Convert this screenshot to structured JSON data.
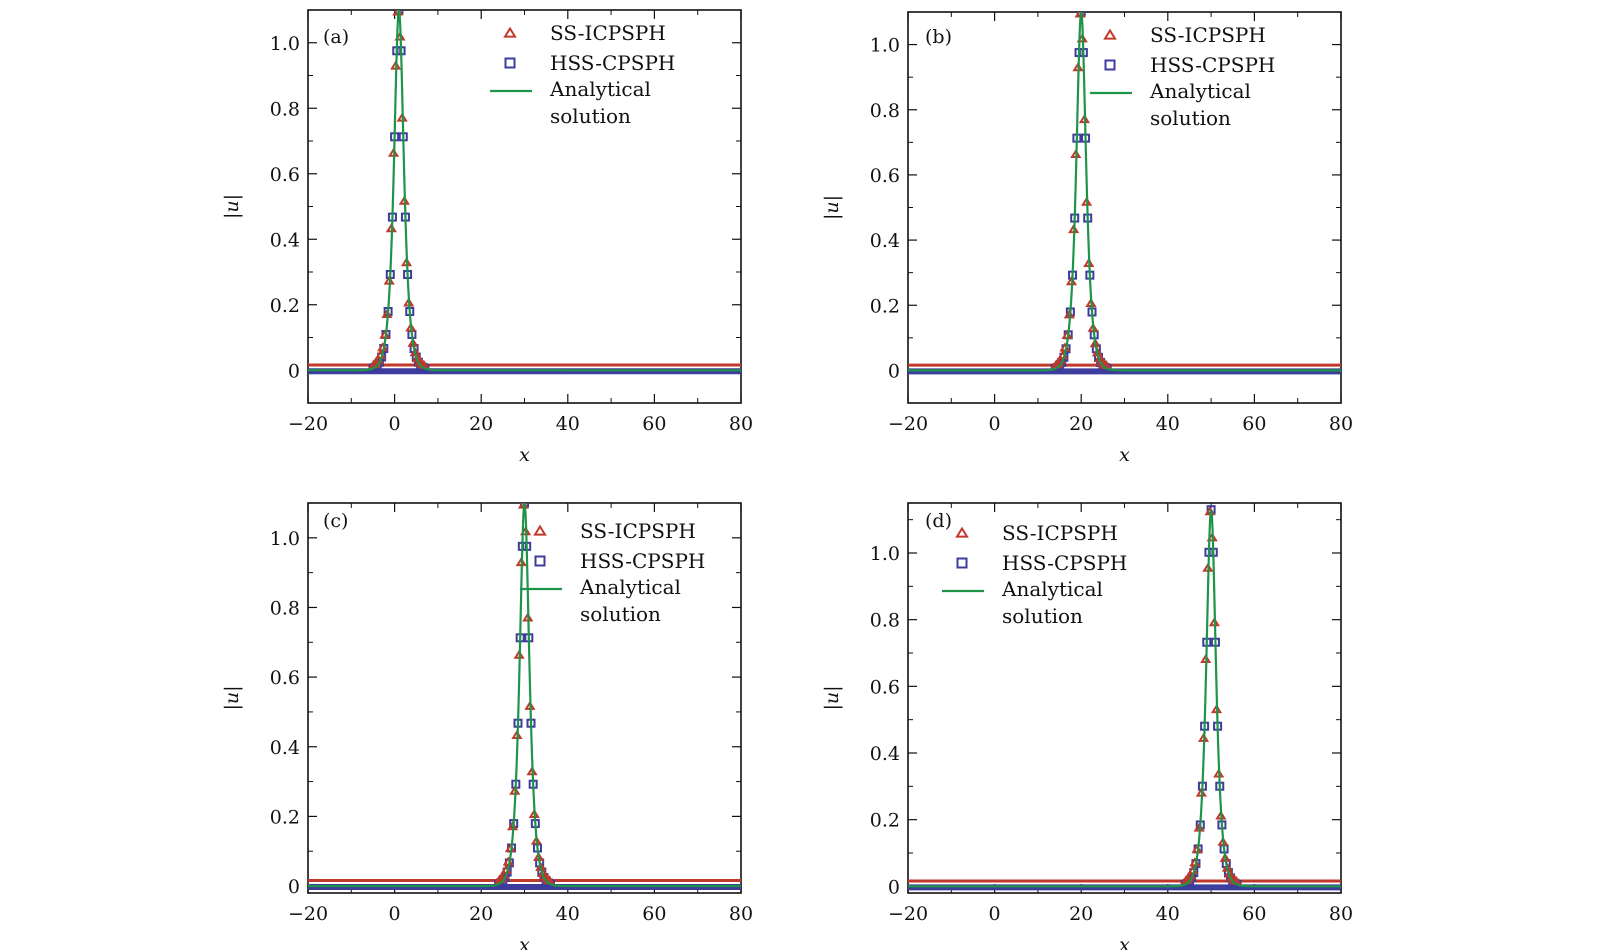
{
  "colors": {
    "ss": "#c0392b",
    "hss": "#3d3d9e",
    "analytical": "#1e9448",
    "axes": "#111111"
  },
  "chart_data": [
    {
      "type": "scatter",
      "panel": "(a)",
      "xlabel": "x",
      "ylabel": "|u|",
      "xlim": [
        -20,
        80
      ],
      "ylim": [
        -0.1,
        1.1
      ],
      "xticks": [
        -20,
        0,
        20,
        40,
        60,
        80
      ],
      "xtick_labels": [
        "−20",
        "0",
        "20",
        "40",
        "60",
        "80"
      ],
      "yticks": [
        0,
        0.2,
        0.4,
        0.6,
        0.8,
        1.0
      ],
      "ytick_labels": [
        "0",
        "0.2",
        "0.4",
        "0.6",
        "0.8",
        "1.0"
      ],
      "legend": [
        "SS-ICPSPH",
        "HSS-CPSPH",
        "Analytical",
        "solution"
      ],
      "legend_position": "top-right",
      "peak_center": 1,
      "peak_amplitude": 1.1,
      "series": [
        {
          "name": "SS-ICPSPH",
          "marker": "triangle",
          "baseline": 0.01
        },
        {
          "name": "HSS-CPSPH",
          "marker": "square",
          "baseline": 0.0
        },
        {
          "name": "Analytical solution",
          "marker": "line",
          "baseline": 0.0
        }
      ]
    },
    {
      "type": "scatter",
      "panel": "(b)",
      "xlabel": "x",
      "ylabel": "|u|",
      "xlim": [
        -20,
        80
      ],
      "ylim": [
        -0.1,
        1.1
      ],
      "xticks": [
        -20,
        0,
        20,
        40,
        60,
        80
      ],
      "xtick_labels": [
        "−20",
        "0",
        "20",
        "40",
        "60",
        "80"
      ],
      "yticks": [
        0,
        0.2,
        0.4,
        0.6,
        0.8,
        1.0
      ],
      "ytick_labels": [
        "0",
        "0.2",
        "0.4",
        "0.6",
        "0.8",
        "1.0"
      ],
      "legend": [
        "SS-ICPSPH",
        "HSS-CPSPH",
        "Analytical",
        "solution"
      ],
      "legend_position": "top-right",
      "peak_center": 20,
      "peak_amplitude": 1.1,
      "series": [
        {
          "name": "SS-ICPSPH",
          "marker": "triangle",
          "baseline": 0.01
        },
        {
          "name": "HSS-CPSPH",
          "marker": "square",
          "baseline": 0.0
        },
        {
          "name": "Analytical solution",
          "marker": "line",
          "baseline": 0.0
        }
      ]
    },
    {
      "type": "scatter",
      "panel": "(c)",
      "xlabel": "x",
      "ylabel": "|u|",
      "xlim": [
        -20,
        80
      ],
      "ylim": [
        -0.02,
        1.1
      ],
      "xticks": [
        -20,
        0,
        20,
        40,
        60,
        80
      ],
      "xtick_labels": [
        "−20",
        "0",
        "20",
        "40",
        "60",
        "80"
      ],
      "yticks": [
        0,
        0.2,
        0.4,
        0.6,
        0.8,
        1.0
      ],
      "ytick_labels": [
        "0",
        "0.2",
        "0.4",
        "0.6",
        "0.8",
        "1.0"
      ],
      "legend": [
        "SS-ICPSPH",
        "HSS-CPSPH",
        "Analytical",
        "solution"
      ],
      "legend_position": "top-right",
      "peak_center": 30,
      "peak_amplitude": 1.1,
      "series": [
        {
          "name": "SS-ICPSPH",
          "marker": "triangle",
          "baseline": 0.01
        },
        {
          "name": "HSS-CPSPH",
          "marker": "square",
          "baseline": 0.0
        },
        {
          "name": "Analytical solution",
          "marker": "line",
          "baseline": 0.0
        }
      ]
    },
    {
      "type": "scatter",
      "panel": "(d)",
      "xlabel": "x",
      "ylabel": "|u|",
      "xlim": [
        -20,
        80
      ],
      "ylim": [
        -0.02,
        1.15
      ],
      "xticks": [
        -20,
        0,
        20,
        40,
        60,
        80
      ],
      "xtick_labels": [
        "−20",
        "0",
        "20",
        "40",
        "60",
        "80"
      ],
      "yticks": [
        0,
        0.2,
        0.4,
        0.6,
        0.8,
        1.0
      ],
      "ytick_labels": [
        "0",
        "0.2",
        "0.4",
        "0.6",
        "0.8",
        "1.0"
      ],
      "legend": [
        "SS-ICPSPH",
        "HSS-CPSPH",
        "Analytical",
        "solution"
      ],
      "legend_position": "top-left",
      "peak_center": 50,
      "peak_amplitude": 1.13,
      "series": [
        {
          "name": "SS-ICPSPH",
          "marker": "triangle",
          "baseline": 0.01
        },
        {
          "name": "HSS-CPSPH",
          "marker": "square",
          "baseline": 0.0
        },
        {
          "name": "Analytical solution",
          "marker": "line",
          "baseline": 0.0
        }
      ]
    }
  ]
}
